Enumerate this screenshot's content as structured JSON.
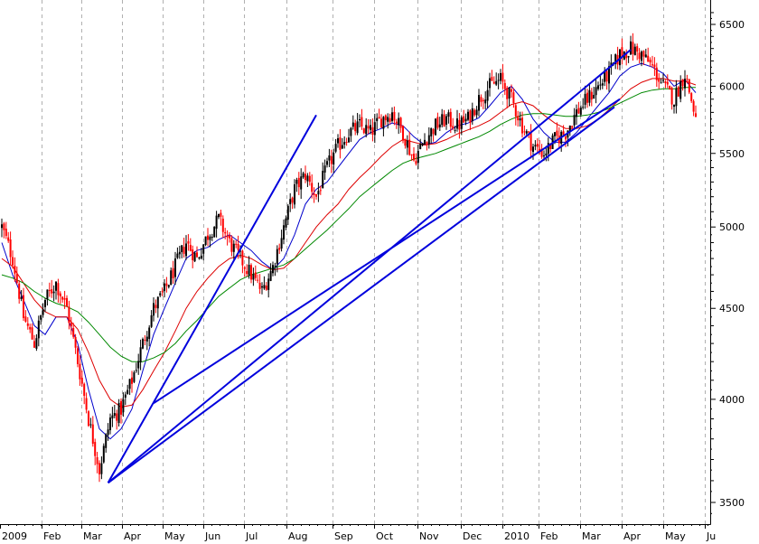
{
  "chart_data": {
    "type": "candlestick",
    "title": "",
    "xlabel": "",
    "ylabel": "",
    "y_scale": "log",
    "ylim": [
      3400,
      6700
    ],
    "grid": {
      "vertical": true,
      "horizontal": false,
      "style": "dashed"
    },
    "legend": "none",
    "x_tick_labels": [
      "2009",
      "Feb",
      "Mar",
      "Apr",
      "May",
      "Jun",
      "Jul",
      "Aug",
      "Sep",
      "Oct",
      "Nov",
      "Dec",
      "2010",
      "Feb",
      "Mar",
      "Apr",
      "May",
      "Ju"
    ],
    "y_tick_labels": [
      "3500",
      "4000",
      "4500",
      "5000",
      "5500",
      "6000",
      "6500"
    ],
    "y_ticks": [
      3500,
      4000,
      4500,
      5000,
      5500,
      6000,
      6500
    ],
    "weekly_close": [
      5000,
      4800,
      4450,
      4300,
      4550,
      4650,
      4500,
      4200,
      3900,
      3650,
      3900,
      3950,
      4100,
      4300,
      4500,
      4600,
      4750,
      4900,
      4800,
      4950,
      5050,
      4900,
      4800,
      4700,
      4600,
      4750,
      5000,
      5250,
      5350,
      5200,
      5400,
      5550,
      5650,
      5700,
      5650,
      5750,
      5800,
      5650,
      5450,
      5600,
      5700,
      5750,
      5700,
      5750,
      5900,
      6000,
      6050,
      5900,
      5700,
      5550,
      5500,
      5600,
      5650,
      5800,
      5900,
      6000,
      6100,
      6250,
      6300,
      6250,
      6150,
      6000,
      5900,
      6100,
      5750
    ],
    "series": [
      {
        "values": [
          4900,
          4700,
          4550,
          4400,
          4350,
          4450,
          4450,
          4300,
          4050,
          3850,
          3800,
          3850,
          3950,
          4150,
          4350,
          4500,
          4650,
          4800,
          4850,
          4870,
          4920,
          4950,
          4900,
          4850,
          4780,
          4730,
          4800,
          4950,
          5150,
          5250,
          5300,
          5400,
          5500,
          5600,
          5650,
          5680,
          5720,
          5700,
          5620,
          5560,
          5580,
          5650,
          5700,
          5720,
          5760,
          5850,
          5950,
          6000,
          5900,
          5750,
          5650,
          5580,
          5580,
          5650,
          5750,
          5850,
          5950,
          6080,
          6150,
          6180,
          6150,
          6100,
          6000,
          6050,
          5950
        ],
        "color": "#0000cc"
      },
      {
        "values": [
          4800,
          4750,
          4650,
          4550,
          4480,
          4450,
          4450,
          4380,
          4250,
          4100,
          4000,
          3960,
          3970,
          4050,
          4150,
          4250,
          4370,
          4500,
          4600,
          4680,
          4750,
          4800,
          4820,
          4800,
          4760,
          4730,
          4740,
          4800,
          4900,
          5000,
          5080,
          5150,
          5250,
          5330,
          5400,
          5480,
          5550,
          5600,
          5580,
          5560,
          5570,
          5600,
          5640,
          5670,
          5700,
          5740,
          5800,
          5860,
          5880,
          5850,
          5780,
          5720,
          5680,
          5680,
          5700,
          5750,
          5820,
          5900,
          5980,
          6030,
          6060,
          6060,
          6040,
          6040,
          6010
        ],
        "color": "#dd0000"
      },
      {
        "values": [
          4700,
          4680,
          4650,
          4600,
          4560,
          4530,
          4510,
          4480,
          4420,
          4350,
          4280,
          4230,
          4200,
          4200,
          4220,
          4250,
          4300,
          4370,
          4430,
          4500,
          4570,
          4620,
          4670,
          4700,
          4720,
          4740,
          4760,
          4800,
          4860,
          4920,
          4980,
          5050,
          5120,
          5200,
          5260,
          5320,
          5380,
          5430,
          5460,
          5480,
          5500,
          5530,
          5560,
          5590,
          5620,
          5660,
          5710,
          5750,
          5780,
          5790,
          5790,
          5780,
          5770,
          5770,
          5780,
          5800,
          5830,
          5870,
          5910,
          5950,
          5970,
          5980,
          5980,
          5990,
          5990
        ],
        "color": "#008800"
      }
    ],
    "trendlines": [
      {
        "from": [
          9.8,
          3590
        ],
        "to": [
          29.0,
          5780
        ]
      },
      {
        "from": [
          9.8,
          3590
        ],
        "to": [
          58.0,
          6290
        ]
      },
      {
        "from": [
          9.8,
          3590
        ],
        "to": [
          56.5,
          5840
        ]
      },
      {
        "from": [
          14.0,
          3980
        ],
        "to": [
          57.0,
          5900
        ]
      }
    ],
    "colors": {
      "up": "#000000",
      "down": "#ff0000",
      "trendline": "#0000dd"
    }
  }
}
